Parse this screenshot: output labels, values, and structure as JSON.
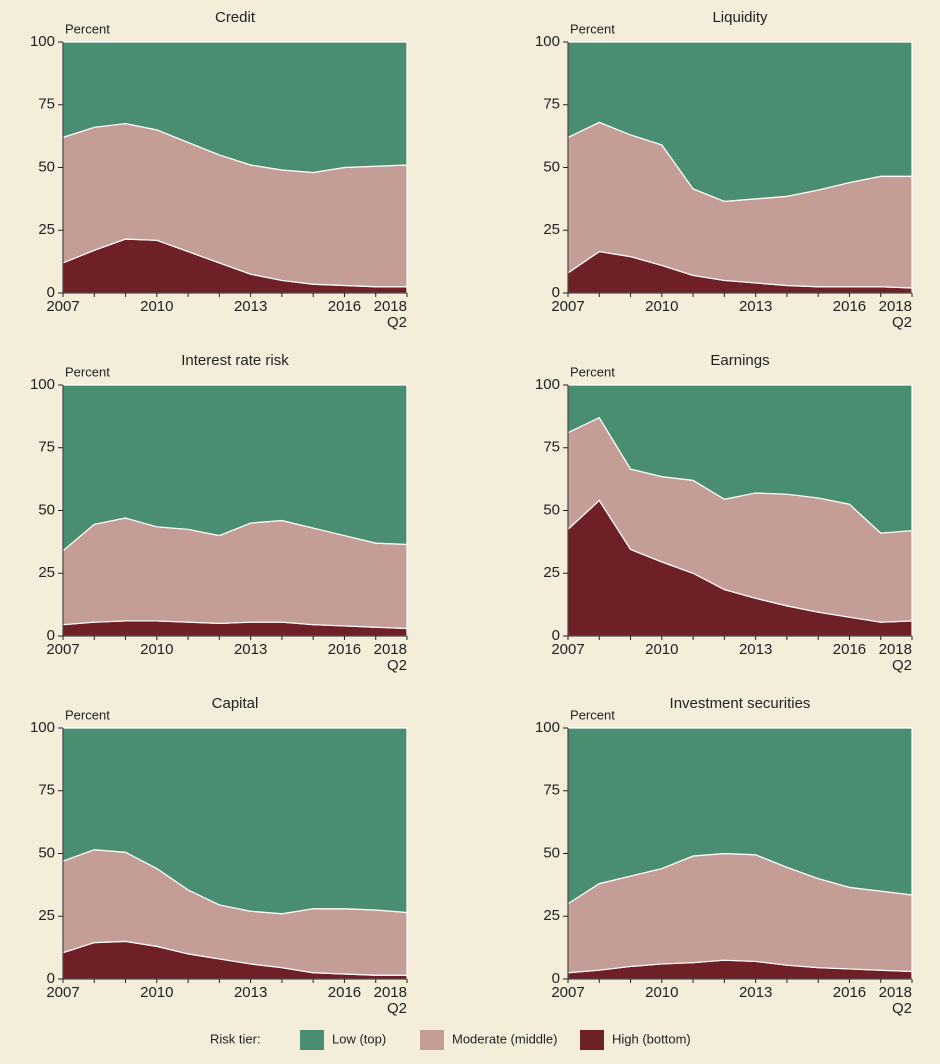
{
  "chart_data": [
    {
      "type": "area",
      "title": "Credit",
      "ylabel": "Percent",
      "categories": [
        "2007",
        null,
        null,
        "2010",
        null,
        null,
        "2013",
        null,
        null,
        "2016",
        null,
        "2018\nQ2"
      ],
      "ylim": [
        0,
        100
      ],
      "yticks": [
        0,
        25,
        50,
        75,
        100
      ],
      "series": [
        {
          "values": [
            38,
            34,
            32.5,
            35,
            40,
            45,
            49,
            51,
            52,
            50,
            49.5,
            49
          ]
        },
        {
          "values": [
            50,
            49,
            46,
            44,
            43.5,
            43,
            43.5,
            44,
            44.5,
            47,
            48,
            48.5
          ]
        },
        {
          "values": [
            12,
            17,
            21.5,
            21,
            16.5,
            12,
            7.5,
            5,
            3.5,
            3,
            2.5,
            2.5
          ]
        }
      ]
    },
    {
      "type": "area",
      "title": "Liquidity",
      "ylabel": "Percent",
      "categories": [
        "2007",
        null,
        null,
        "2010",
        null,
        null,
        "2013",
        null,
        null,
        "2016",
        null,
        "2018\nQ2"
      ],
      "ylim": [
        0,
        100
      ],
      "yticks": [
        0,
        25,
        50,
        75,
        100
      ],
      "series": [
        {
          "values": [
            38,
            32,
            37,
            41,
            58.5,
            63.5,
            62.5,
            61.5,
            59,
            56,
            53.5,
            53.5
          ]
        },
        {
          "values": [
            54,
            51.5,
            48.5,
            48,
            34.5,
            31.5,
            33.5,
            35.5,
            38.5,
            41.5,
            44,
            44.5
          ]
        },
        {
          "values": [
            8,
            16.5,
            14.5,
            11,
            7,
            5,
            4,
            3,
            2.5,
            2.5,
            2.5,
            2
          ]
        }
      ]
    },
    {
      "type": "area",
      "title": "Interest rate risk",
      "ylabel": "Percent",
      "categories": [
        "2007",
        null,
        null,
        "2010",
        null,
        null,
        "2013",
        null,
        null,
        "2016",
        null,
        "2018\nQ2"
      ],
      "ylim": [
        0,
        100
      ],
      "yticks": [
        0,
        25,
        50,
        75,
        100
      ],
      "series": [
        {
          "values": [
            66,
            55.5,
            53,
            56.5,
            57.5,
            60,
            55,
            54,
            57,
            60,
            63,
            63.5
          ]
        },
        {
          "values": [
            29.5,
            39,
            41,
            37.5,
            37,
            35,
            39.5,
            40.5,
            38.5,
            36,
            33.5,
            33.5
          ]
        },
        {
          "values": [
            4.5,
            5.5,
            6,
            6,
            5.5,
            5,
            5.5,
            5.5,
            4.5,
            4,
            3.5,
            3
          ]
        }
      ]
    },
    {
      "type": "area",
      "title": "Earnings",
      "ylabel": "Percent",
      "categories": [
        "2007",
        null,
        null,
        "2010",
        null,
        null,
        "2013",
        null,
        null,
        "2016",
        null,
        "2018\nQ2"
      ],
      "ylim": [
        0,
        100
      ],
      "yticks": [
        0,
        25,
        50,
        75,
        100
      ],
      "series": [
        {
          "values": [
            19,
            13,
            33.5,
            36.5,
            38,
            45.5,
            43,
            43.5,
            45,
            47.5,
            59,
            58
          ]
        },
        {
          "values": [
            38.5,
            33,
            32,
            34,
            37,
            36,
            42,
            44.5,
            45.5,
            45,
            35.5,
            36
          ]
        },
        {
          "values": [
            42.5,
            54,
            34.5,
            29.5,
            25,
            18.5,
            15,
            12,
            9.5,
            7.5,
            5.5,
            6
          ]
        }
      ]
    },
    {
      "type": "area",
      "title": "Capital",
      "ylabel": "Percent",
      "categories": [
        "2007",
        null,
        null,
        "2010",
        null,
        null,
        "2013",
        null,
        null,
        "2016",
        null,
        "2018\nQ2"
      ],
      "ylim": [
        0,
        100
      ],
      "yticks": [
        0,
        25,
        50,
        75,
        100
      ],
      "series": [
        {
          "values": [
            53,
            48.5,
            49.5,
            56,
            64.5,
            70.5,
            73,
            74,
            72,
            72,
            72.5,
            73.5
          ]
        },
        {
          "values": [
            36.5,
            37,
            35.5,
            31,
            25.5,
            21.5,
            21,
            21.5,
            25.5,
            26,
            26,
            25
          ]
        },
        {
          "values": [
            10.5,
            14.5,
            15,
            13,
            10,
            8,
            6,
            4.5,
            2.5,
            2,
            1.5,
            1.5
          ]
        }
      ]
    },
    {
      "type": "area",
      "title": "Investment securities",
      "ylabel": "Percent",
      "categories": [
        "2007",
        null,
        null,
        "2010",
        null,
        null,
        "2013",
        null,
        null,
        "2016",
        null,
        "2018\nQ2"
      ],
      "ylim": [
        0,
        100
      ],
      "yticks": [
        0,
        25,
        50,
        75,
        100
      ],
      "series": [
        {
          "values": [
            70,
            62,
            59,
            56,
            51,
            50,
            50.5,
            55.5,
            60,
            63.5,
            65,
            66.5
          ]
        },
        {
          "values": [
            27.5,
            34.5,
            36,
            38,
            42.5,
            42.5,
            42.5,
            39,
            35.5,
            32.5,
            31.5,
            30.5
          ]
        },
        {
          "values": [
            2.5,
            3.5,
            5,
            6,
            6.5,
            7.5,
            7,
            5.5,
            4.5,
            4,
            3.5,
            3
          ]
        }
      ]
    }
  ],
  "legend": {
    "title": "Risk tier:",
    "items": [
      {
        "name": "Low (top)",
        "color": "#4a8e72"
      },
      {
        "name": "Moderate (middle)",
        "color": "#c49e96"
      },
      {
        "name": "High (bottom)",
        "color": "#6e2026"
      }
    ]
  }
}
